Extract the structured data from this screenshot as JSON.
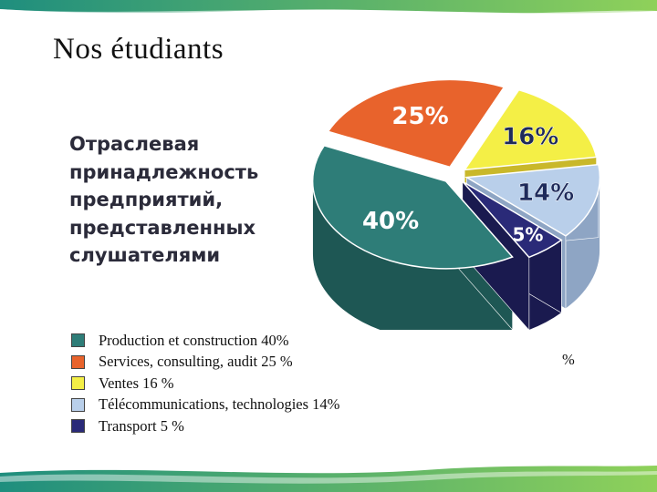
{
  "slide": {
    "title": "Nos étudiants",
    "subtitle": "Отраслевая\nпринадлежность\nпредприятий,\nпредставленных\nслушателями",
    "stray_text": "%"
  },
  "colors": {
    "top_band": [
      "#1f8e7e",
      "#8fd15a"
    ],
    "bottom_band": [
      "#1f8e7e",
      "#8fd15a"
    ]
  },
  "chart_data": {
    "type": "pie",
    "title": "",
    "series": [
      {
        "name": "Production et construction",
        "value": 40,
        "label": "40%",
        "color": "#2e7d78",
        "side": "#1e5754",
        "text_color": "#ffffff"
      },
      {
        "name": "Services, consulting, audit",
        "value": 25,
        "label": "25%",
        "color": "#e8632c",
        "side": "#b4461a",
        "text_color": "#ffffff"
      },
      {
        "name": "Ventes",
        "value": 16,
        "label": "16%",
        "color": "#f4ef46",
        "side": "#c9b82a",
        "text_color": "#1e2a5a"
      },
      {
        "name": "Télécommunications, technologies",
        "value": 14,
        "label": "14%",
        "color": "#b9cfea",
        "side": "#8ea5c4",
        "text_color": "#1e2a5a"
      },
      {
        "name": "Transport",
        "value": 5,
        "label": "5%",
        "color": "#2a2a78",
        "side": "#1a1a4f",
        "text_color": "#ffffff"
      }
    ],
    "legend_entries": [
      {
        "text": "Production et construction 40%",
        "color": "#2e7d78"
      },
      {
        "text": "Services, consulting, audit 25 %",
        "color": "#e8632c"
      },
      {
        "text": "Ventes 16 %",
        "color": "#f4ef46"
      },
      {
        "text": "Télécommunications, technologies 14%",
        "color": "#b9cfea"
      },
      {
        "text": "Transport 5 %",
        "color": "#2a2a78"
      }
    ]
  }
}
